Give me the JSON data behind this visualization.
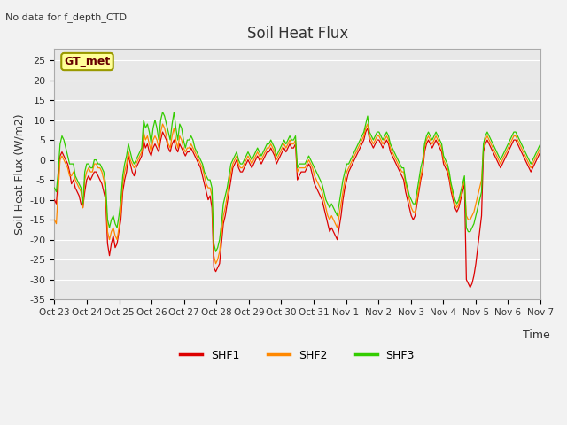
{
  "title": "Soil Heat Flux",
  "top_left_text": "No data for f_depth_CTD",
  "box_label": "GT_met",
  "ylabel": "Soil Heat Flux (W/m2)",
  "xlabel": "Time",
  "ylim": [
    -35,
    28
  ],
  "yticks": [
    -35,
    -30,
    -25,
    -20,
    -15,
    -10,
    -5,
    0,
    5,
    10,
    15,
    20,
    25
  ],
  "xtick_labels": [
    "Oct 23",
    "Oct 24",
    "Oct 25",
    "Oct 26",
    "Oct 27",
    "Oct 28",
    "Oct 29",
    "Oct 30",
    "Oct 31",
    "Nov 1",
    "Nov 2",
    "Nov 3",
    "Nov 4",
    "Nov 5",
    "Nov 6",
    "Nov 7"
  ],
  "color_shf1": "#dd0000",
  "color_shf2": "#ff8800",
  "color_shf3": "#33cc00",
  "legend_labels": [
    "SHF1",
    "SHF2",
    "SHF3"
  ],
  "bg_color": "#e8e8e8",
  "plot_bg": "#e8e8e8",
  "grid_color": "#ffffff",
  "box_bg": "#ffff99",
  "box_edge": "#999900",
  "fig_bg": "#f2f2f2",
  "shf1": [
    -10,
    -11,
    -5,
    1,
    2,
    1,
    0,
    -1,
    -3,
    -6,
    -5,
    -7,
    -8,
    -9,
    -11,
    -12,
    -8,
    -5,
    -4,
    -5,
    -4,
    -3,
    -3,
    -4,
    -5,
    -6,
    -8,
    -10,
    -21,
    -24,
    -21,
    -19,
    -22,
    -21,
    -18,
    -15,
    -8,
    -5,
    -3,
    1,
    -1,
    -3,
    -4,
    -2,
    -1,
    0,
    1,
    5,
    3,
    4,
    2,
    1,
    3,
    4,
    3,
    2,
    5,
    7,
    6,
    5,
    3,
    2,
    4,
    5,
    3,
    2,
    4,
    3,
    2,
    1,
    2,
    2,
    3,
    2,
    1,
    0,
    -1,
    -2,
    -4,
    -6,
    -8,
    -10,
    -9,
    -12,
    -27,
    -28,
    -27,
    -26,
    -21,
    -16,
    -14,
    -11,
    -8,
    -5,
    -2,
    -1,
    0,
    -2,
    -3,
    -3,
    -2,
    -1,
    0,
    -1,
    -2,
    -1,
    0,
    1,
    0,
    -1,
    0,
    1,
    2,
    2,
    3,
    2,
    1,
    -1,
    0,
    1,
    2,
    3,
    2,
    3,
    4,
    3,
    3,
    4,
    -5,
    -4,
    -3,
    -3,
    -3,
    -2,
    -1,
    -2,
    -4,
    -6,
    -7,
    -8,
    -9,
    -10,
    -12,
    -14,
    -16,
    -18,
    -17,
    -18,
    -19,
    -20,
    -17,
    -14,
    -10,
    -7,
    -5,
    -3,
    -2,
    -1,
    0,
    1,
    2,
    3,
    4,
    5,
    7,
    8,
    5,
    4,
    3,
    4,
    5,
    5,
    4,
    3,
    4,
    5,
    4,
    2,
    1,
    0,
    -1,
    -2,
    -3,
    -4,
    -5,
    -8,
    -10,
    -12,
    -14,
    -15,
    -14,
    -11,
    -8,
    -5,
    -3,
    2,
    4,
    5,
    4,
    3,
    4,
    5,
    4,
    3,
    2,
    -1,
    -2,
    -3,
    -5,
    -8,
    -10,
    -12,
    -13,
    -12,
    -10,
    -8,
    -6,
    -30,
    -31,
    -32,
    -31,
    -29,
    -26,
    -22,
    -18,
    -14,
    2,
    4,
    5,
    4,
    3,
    2,
    1,
    0,
    -1,
    -2,
    -1,
    0,
    1,
    2,
    3,
    4,
    5,
    5,
    4,
    3,
    2,
    1,
    0,
    -1,
    -2,
    -3,
    -2,
    -1,
    0,
    1,
    2
  ],
  "shf2": [
    -15,
    -16,
    -8,
    0,
    1,
    0,
    -1,
    -2,
    -4,
    -4,
    -3,
    -5,
    -6,
    -7,
    -8,
    -12,
    -5,
    -3,
    -2,
    -3,
    -3,
    -1,
    -1,
    -2,
    -2,
    -3,
    -5,
    -8,
    -18,
    -20,
    -18,
    -17,
    -19,
    -20,
    -17,
    -13,
    -6,
    -3,
    -1,
    2,
    0,
    -1,
    -2,
    -1,
    0,
    1,
    2,
    7,
    5,
    6,
    4,
    2,
    5,
    6,
    5,
    3,
    7,
    9,
    8,
    6,
    4,
    3,
    6,
    8,
    5,
    3,
    6,
    5,
    3,
    2,
    3,
    3,
    4,
    3,
    2,
    1,
    0,
    -1,
    -2,
    -4,
    -6,
    -7,
    -7,
    -9,
    -24,
    -26,
    -25,
    -23,
    -19,
    -14,
    -12,
    -9,
    -6,
    -3,
    -1,
    0,
    1,
    -1,
    -2,
    -2,
    -1,
    0,
    1,
    0,
    -1,
    0,
    1,
    2,
    1,
    0,
    1,
    2,
    3,
    3,
    4,
    3,
    2,
    0,
    1,
    2,
    3,
    4,
    3,
    4,
    5,
    4,
    4,
    5,
    -3,
    -2,
    -2,
    -2,
    -2,
    -1,
    0,
    -1,
    -2,
    -4,
    -5,
    -6,
    -7,
    -8,
    -10,
    -12,
    -14,
    -15,
    -14,
    -15,
    -16,
    -17,
    -14,
    -11,
    -8,
    -5,
    -3,
    -2,
    -1,
    0,
    1,
    2,
    3,
    4,
    5,
    6,
    8,
    9,
    6,
    5,
    4,
    5,
    6,
    6,
    5,
    4,
    5,
    6,
    5,
    3,
    2,
    1,
    0,
    -1,
    -2,
    -3,
    -3,
    -6,
    -8,
    -10,
    -12,
    -13,
    -13,
    -10,
    -7,
    -4,
    -2,
    3,
    5,
    6,
    5,
    4,
    5,
    6,
    5,
    4,
    3,
    0,
    -1,
    -2,
    -4,
    -7,
    -9,
    -11,
    -12,
    -11,
    -9,
    -7,
    -5,
    -14,
    -15,
    -15,
    -14,
    -13,
    -11,
    -9,
    -7,
    -5,
    3,
    5,
    6,
    5,
    4,
    3,
    2,
    1,
    0,
    -1,
    0,
    1,
    2,
    3,
    4,
    5,
    6,
    6,
    5,
    4,
    3,
    2,
    1,
    0,
    -1,
    -2,
    -1,
    0,
    1,
    2,
    3
  ],
  "shf3": [
    -7,
    -8,
    -3,
    4,
    6,
    5,
    3,
    1,
    -1,
    -1,
    -1,
    -4,
    -5,
    -6,
    -7,
    -11,
    -3,
    -1,
    -1,
    -2,
    -2,
    0,
    0,
    -1,
    -1,
    -2,
    -3,
    -6,
    -15,
    -17,
    -15,
    -14,
    -16,
    -17,
    -14,
    -10,
    -4,
    -1,
    1,
    4,
    2,
    0,
    -1,
    0,
    1,
    2,
    3,
    10,
    8,
    9,
    7,
    4,
    8,
    10,
    8,
    5,
    10,
    12,
    11,
    9,
    7,
    5,
    9,
    12,
    8,
    5,
    9,
    8,
    5,
    3,
    5,
    5,
    6,
    5,
    3,
    2,
    1,
    0,
    -1,
    -3,
    -4,
    -5,
    -5,
    -7,
    -21,
    -23,
    -22,
    -20,
    -16,
    -11,
    -9,
    -7,
    -4,
    -1,
    0,
    1,
    2,
    0,
    -1,
    -1,
    0,
    1,
    2,
    1,
    0,
    1,
    2,
    3,
    2,
    1,
    2,
    3,
    4,
    4,
    5,
    4,
    3,
    1,
    2,
    3,
    4,
    5,
    4,
    5,
    6,
    5,
    5,
    6,
    -2,
    -1,
    -1,
    -1,
    -1,
    0,
    1,
    0,
    -1,
    -2,
    -3,
    -4,
    -5,
    -6,
    -8,
    -10,
    -11,
    -12,
    -11,
    -12,
    -13,
    -14,
    -11,
    -8,
    -5,
    -3,
    -1,
    -1,
    0,
    1,
    2,
    3,
    4,
    5,
    6,
    7,
    9,
    11,
    7,
    6,
    5,
    6,
    7,
    7,
    6,
    5,
    6,
    7,
    6,
    4,
    3,
    2,
    1,
    0,
    -1,
    -2,
    -2,
    -5,
    -7,
    -9,
    -10,
    -11,
    -11,
    -8,
    -5,
    -2,
    0,
    4,
    6,
    7,
    6,
    5,
    6,
    7,
    6,
    5,
    4,
    1,
    0,
    -1,
    -3,
    -6,
    -8,
    -10,
    -11,
    -10,
    -8,
    -6,
    -4,
    -17,
    -18,
    -18,
    -17,
    -16,
    -14,
    -12,
    -10,
    -8,
    4,
    6,
    7,
    6,
    5,
    4,
    3,
    2,
    1,
    0,
    1,
    2,
    3,
    4,
    5,
    6,
    7,
    7,
    6,
    5,
    4,
    3,
    2,
    1,
    0,
    -1,
    0,
    1,
    2,
    3,
    4
  ]
}
